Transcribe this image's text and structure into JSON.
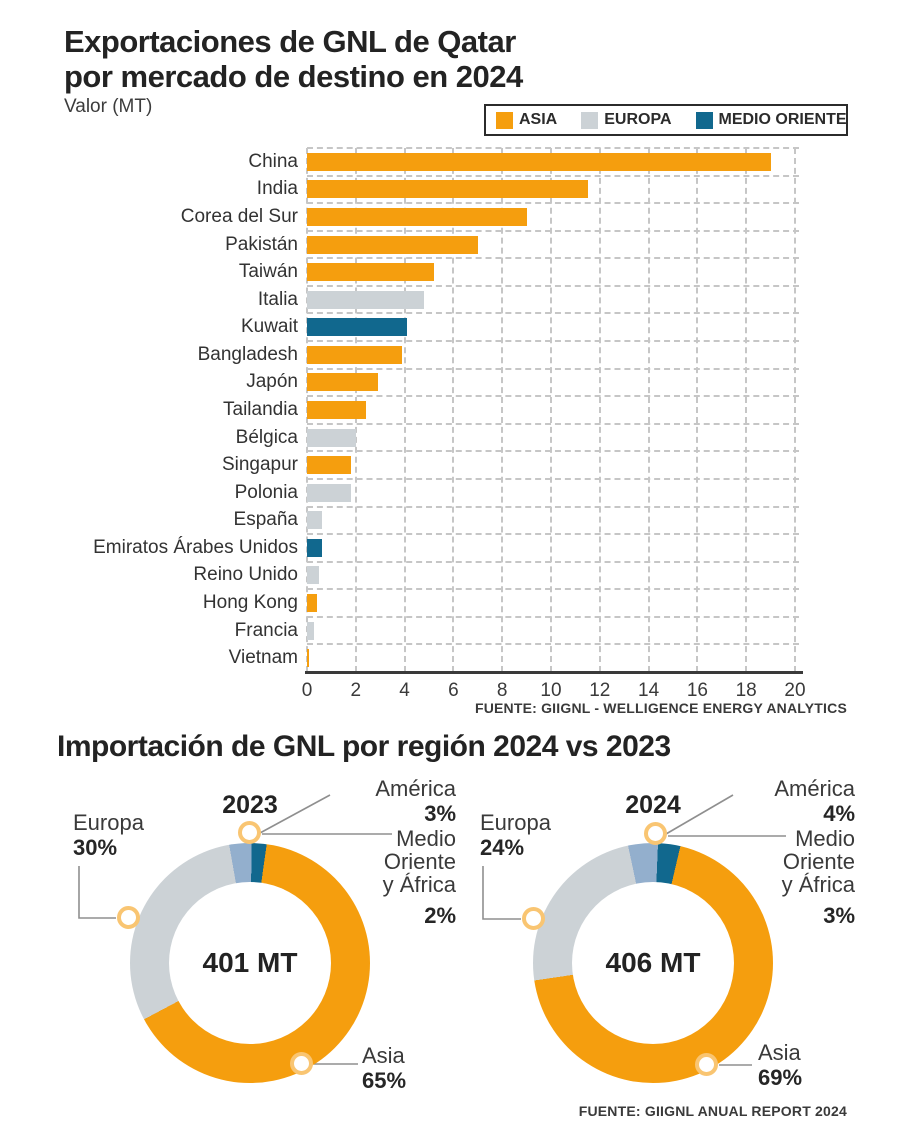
{
  "header": {
    "title_line1": "Exportaciones de GNL de Qatar",
    "title_line2": "por mercado de destino en 2024",
    "value_label": "Valor (MT)"
  },
  "section2": {
    "title": "Importación de GNL por región 2024 vs 2023"
  },
  "chart_data": [
    {
      "type": "bar",
      "orientation": "horizontal",
      "title": "Exportaciones de GNL de Qatar por mercado de destino en 2024",
      "unit": "MT",
      "xlim": [
        0,
        20
      ],
      "x_ticks": [
        0,
        2,
        4,
        6,
        8,
        10,
        12,
        14,
        16,
        18,
        20
      ],
      "grid": "dashed",
      "legend": [
        {
          "label": "ASIA",
          "color": "#F59E0E"
        },
        {
          "label": "EUROPA",
          "color": "#CCD2D6"
        },
        {
          "label": "MEDIO ORIENTE",
          "color": "#11688E"
        }
      ],
      "rows": [
        {
          "label": "China",
          "region": "ASIA",
          "value": 19.0
        },
        {
          "label": "India",
          "region": "ASIA",
          "value": 11.5
        },
        {
          "label": "Corea del Sur",
          "region": "ASIA",
          "value": 9.0
        },
        {
          "label": "Pakistán",
          "region": "ASIA",
          "value": 7.0
        },
        {
          "label": "Taiwán",
          "region": "ASIA",
          "value": 5.2
        },
        {
          "label": "Italia",
          "region": "EUROPA",
          "value": 4.8
        },
        {
          "label": "Kuwait",
          "region": "MEDIO ORIENTE",
          "value": 4.1
        },
        {
          "label": "Bangladesh",
          "region": "ASIA",
          "value": 3.9
        },
        {
          "label": "Japón",
          "region": "ASIA",
          "value": 2.9
        },
        {
          "label": "Tailandia",
          "region": "ASIA",
          "value": 2.4
        },
        {
          "label": "Bélgica",
          "region": "EUROPA",
          "value": 2.0
        },
        {
          "label": "Singapur",
          "region": "ASIA",
          "value": 1.8
        },
        {
          "label": "Polonia",
          "region": "EUROPA",
          "value": 1.8
        },
        {
          "label": "España",
          "region": "EUROPA",
          "value": 0.6
        },
        {
          "label": "Emiratos Árabes Unidos",
          "region": "MEDIO ORIENTE",
          "value": 0.6
        },
        {
          "label": "Reino Unido",
          "region": "EUROPA",
          "value": 0.5
        },
        {
          "label": "Hong Kong",
          "region": "ASIA",
          "value": 0.4
        },
        {
          "label": "Francia",
          "region": "EUROPA",
          "value": 0.3
        },
        {
          "label": "Vietnam",
          "region": "ASIA",
          "value": 0.1
        }
      ],
      "source": "FUENTE: GIIGNL - WELLIGENCE ENERGY ANALYTICS"
    },
    {
      "type": "pie",
      "subtype": "donut",
      "title": "Importación de GNL por región 2024 vs 2023",
      "charts": [
        {
          "year": "2023",
          "total": "401 MT",
          "slices": [
            {
              "label": "América",
              "pct": 3,
              "pct_label": "3%",
              "color": "#93AFCD"
            },
            {
              "label": "Medio Oriente y África",
              "pct": 2,
              "pct_label": "2%",
              "color": "#11688E"
            },
            {
              "label": "Asia",
              "pct": 65,
              "pct_label": "65%",
              "color": "#F59E0E"
            },
            {
              "label": "Europa",
              "pct": 30,
              "pct_label": "30%",
              "color": "#CCD2D6"
            }
          ]
        },
        {
          "year": "2024",
          "total": "406 MT",
          "slices": [
            {
              "label": "América",
              "pct": 4,
              "pct_label": "4%",
              "color": "#93AFCD"
            },
            {
              "label": "Medio Oriente y África",
              "pct": 3,
              "pct_label": "3%",
              "color": "#11688E"
            },
            {
              "label": "Asia",
              "pct": 69,
              "pct_label": "69%",
              "color": "#F59E0E"
            },
            {
              "label": "Europa",
              "pct": 24,
              "pct_label": "24%",
              "color": "#CCD2D6"
            }
          ]
        }
      ],
      "source": "FUENTE: GIIGNL ANUAL REPORT 2024"
    }
  ],
  "accent_colors": {
    "asia_orange": "#F59E0E",
    "europa_gray": "#CCD2D6",
    "medio_oriente_teal": "#11688E",
    "america_blue": "#93AFCD",
    "callout_ring": "#F9C572"
  }
}
